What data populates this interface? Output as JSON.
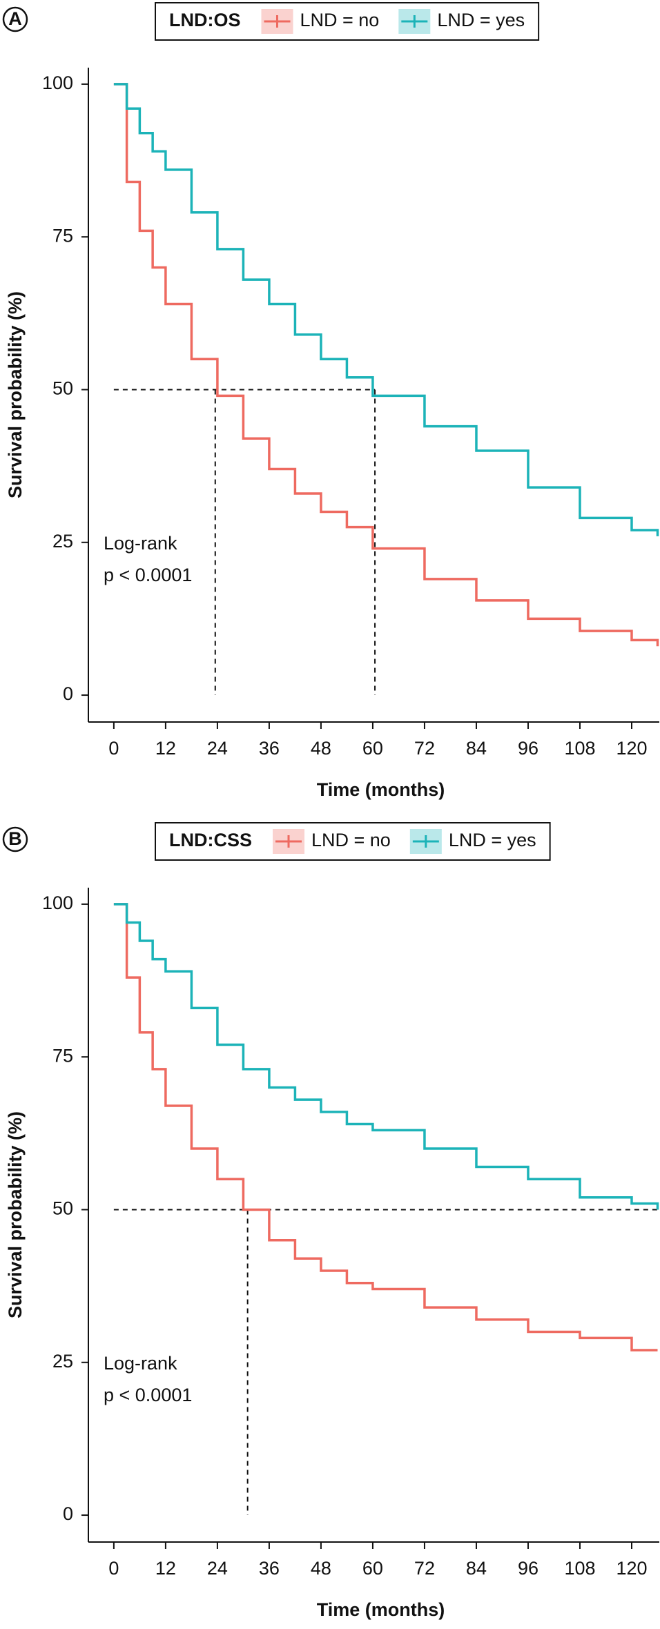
{
  "chart_data": [
    {
      "type": "line",
      "panel": "A",
      "legend_title": "LND:OS",
      "xlabel": "Time (months)",
      "ylabel": "Survival probability (%)",
      "annotation": [
        "Log-rank",
        "p < 0.0001"
      ],
      "x": [
        0,
        3,
        6,
        9,
        12,
        18,
        24,
        30,
        36,
        42,
        48,
        54,
        60,
        72,
        84,
        96,
        108,
        120,
        126
      ],
      "series": [
        {
          "name": "LND = no",
          "color": "#ee6a60",
          "values": [
            100,
            84,
            76,
            70,
            64,
            55,
            49,
            42,
            37,
            33,
            30,
            27.5,
            24,
            19,
            15.5,
            12.5,
            10.5,
            9,
            8
          ]
        },
        {
          "name": "LND = yes",
          "color": "#1cb3b8",
          "values": [
            100,
            96,
            92,
            89,
            86,
            79,
            73,
            68,
            64,
            59,
            55,
            52,
            49,
            44,
            40,
            34,
            29,
            27,
            26
          ]
        }
      ],
      "median_y": 50,
      "medians": [
        23.5,
        60.5
      ],
      "xlim": [
        -5.9,
        126.4
      ],
      "xticks": [
        0,
        12,
        24,
        36,
        48,
        60,
        72,
        84,
        96,
        108,
        120
      ],
      "ylim": [
        -4.4,
        102.7
      ],
      "yticks": [
        0,
        25,
        50,
        75,
        100
      ]
    },
    {
      "type": "line",
      "panel": "B",
      "legend_title": "LND:CSS",
      "xlabel": "Time (months)",
      "ylabel": "Survival probability (%)",
      "annotation": [
        "Log-rank",
        "p < 0.0001"
      ],
      "x": [
        0,
        3,
        6,
        9,
        12,
        18,
        24,
        30,
        36,
        42,
        48,
        54,
        60,
        72,
        84,
        96,
        108,
        120,
        126
      ],
      "series": [
        {
          "name": "LND = no",
          "color": "#ee6a60",
          "values": [
            100,
            88,
            79,
            73,
            67,
            60,
            55,
            50,
            45,
            42,
            40,
            38,
            37,
            34,
            32,
            30,
            29,
            27,
            27
          ]
        },
        {
          "name": "LND = yes",
          "color": "#1cb3b8",
          "values": [
            100,
            97,
            94,
            91,
            89,
            83,
            77,
            73,
            70,
            68,
            66,
            64,
            63,
            60,
            57,
            55,
            52,
            51,
            50
          ]
        }
      ],
      "median_y": 50,
      "medians": [
        31
      ],
      "xlim": [
        -5.9,
        126.4
      ],
      "xticks": [
        0,
        12,
        24,
        36,
        48,
        60,
        72,
        84,
        96,
        108,
        120
      ],
      "ylim": [
        -4.4,
        102.7
      ],
      "yticks": [
        0,
        25,
        50,
        75,
        100
      ]
    }
  ]
}
